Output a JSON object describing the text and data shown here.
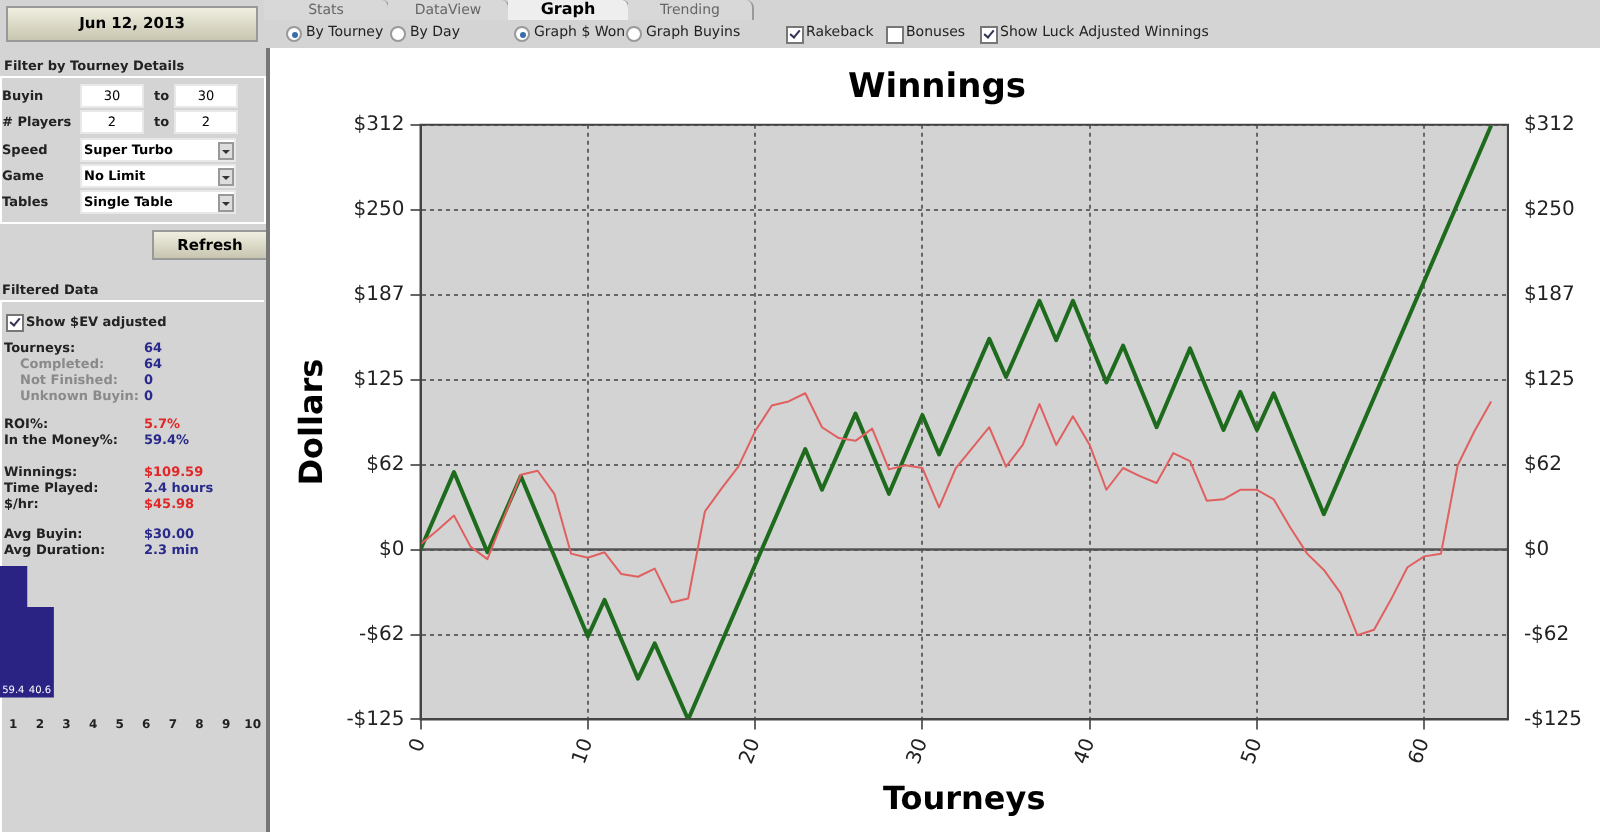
{
  "chart_data": [
    {
      "type": "other",
      "annotations": [
        "Jun 12, 2013",
        "Filter by Tourney Details",
        "Buyin",
        "30",
        "to",
        "30",
        "# Players",
        "2",
        "to",
        "2",
        "Speed",
        "Super Turbo",
        "Game",
        "No Limit",
        "Tables",
        "Single Table",
        "Refresh",
        "Filtered Data",
        "Show $EV adjusted",
        "Tourneys:",
        "64",
        "Completed:",
        "64",
        "Not Finished:",
        "0",
        "Unknown Buyin:",
        "0",
        "ROI%:",
        "5.7%",
        "In the Money%:",
        "59.4%",
        "Winnings:",
        "$109.59",
        "Time Played:",
        "2.4 hours",
        "$/hr:",
        "$45.98",
        "Avg Buyin:",
        "$30.00",
        "Avg Duration:",
        "2.3 min"
      ]
    },
    {
      "type": "bar",
      "categories": [
        "1",
        "2",
        "3",
        "4",
        "5",
        "6",
        "7",
        "8",
        "9",
        "10"
      ],
      "values": [
        59.4,
        40.6,
        null,
        null,
        null,
        null,
        null,
        null,
        null,
        null
      ],
      "color": "#2b2383",
      "data_labels": true,
      "tick_labels": "x",
      "grid": false
    },
    {
      "type": "other",
      "annotations": [
        "Stats",
        "DataView",
        "Graph",
        "Trending",
        "By Tourney",
        "By Day",
        "Graph $ Won",
        "Graph Buyins",
        "Rakeback",
        "Bonuses",
        "Show Luck Adjusted Winnings"
      ]
    },
    {
      "type": "line",
      "title": "Winnings",
      "xlabel": "Tourneys",
      "ylabel": "Dollars",
      "xlim": [
        0,
        65
      ],
      "xticks": [
        0,
        10,
        20,
        30,
        40,
        50,
        60
      ],
      "ylim": [
        -125,
        312.5
      ],
      "yticks": [
        {
          "value": -125,
          "label": "-$125"
        },
        {
          "value": -62.5,
          "label": "-$62"
        },
        {
          "value": 0,
          "label": "$0"
        },
        {
          "value": 62.5,
          "label": "$62"
        },
        {
          "value": 125,
          "label": "$125"
        },
        {
          "value": 187.5,
          "label": "$187"
        },
        {
          "value": 250,
          "label": "$250"
        },
        {
          "value": 312.5,
          "label": "$312"
        }
      ],
      "y2lim": [
        -125,
        312.5
      ],
      "y2ticks": [
        {
          "value": -125,
          "label": "-$125"
        },
        {
          "value": -62.5,
          "label": "-$62"
        },
        {
          "value": 0,
          "label": "$0"
        },
        {
          "value": 62.5,
          "label": "$62"
        },
        {
          "value": 125,
          "label": "$125"
        },
        {
          "value": 187.5,
          "label": "$187"
        },
        {
          "value": 250,
          "label": "$250"
        },
        {
          "value": 312.5,
          "label": "$312"
        }
      ],
      "grid": true,
      "legend": false,
      "ref_lines": [
        {
          "axis": "y",
          "value": 0,
          "color": "#555555"
        }
      ],
      "series": [
        {
          "color": "#e06060",
          "x": [
            0,
            1,
            2,
            3,
            4,
            5,
            6,
            7,
            8,
            9,
            10,
            11,
            12,
            13,
            14,
            15,
            16,
            17,
            18,
            19,
            20,
            21,
            22,
            23,
            24,
            25,
            26,
            27,
            28,
            29,
            30,
            31,
            32,
            33,
            34,
            35,
            36,
            37,
            38,
            39,
            40,
            41,
            42,
            43,
            44,
            45,
            46,
            47,
            48,
            49,
            50,
            51,
            52,
            53,
            54,
            55,
            56,
            57,
            58,
            59,
            60,
            61,
            62,
            63,
            64
          ],
          "values": [
            4,
            14,
            25,
            2,
            -7,
            24,
            55,
            58,
            41,
            -3,
            -6,
            -2,
            -18,
            -20,
            -14,
            -39,
            -36,
            28,
            45,
            61,
            87,
            106,
            109,
            115,
            90,
            82,
            80,
            89,
            59,
            62,
            60,
            31,
            60,
            75,
            90,
            61,
            77,
            107,
            77,
            98,
            77,
            44,
            60,
            54,
            49,
            71,
            65,
            36,
            37,
            44,
            44,
            37,
            16,
            -3,
            -15,
            -32,
            -63,
            -59,
            -37,
            -13,
            -5,
            -3,
            62,
            87,
            109
          ]
        },
        {
          "color": "#1e6b1e",
          "x": [
            0,
            2,
            4,
            6,
            10,
            11,
            13,
            14,
            16,
            23,
            24,
            26,
            28,
            30,
            31,
            34,
            35,
            37,
            38,
            39,
            41,
            42,
            44,
            46,
            48,
            49,
            50,
            51,
            54,
            64
          ],
          "values": [
            0,
            57,
            -2,
            54,
            -64,
            -37,
            -95,
            -69,
            -125,
            74,
            44,
            100,
            41,
            99,
            70,
            155,
            127,
            183,
            154,
            183,
            123,
            150,
            90,
            148,
            88,
            116,
            88,
            115,
            26,
            312
          ]
        }
      ]
    }
  ]
}
